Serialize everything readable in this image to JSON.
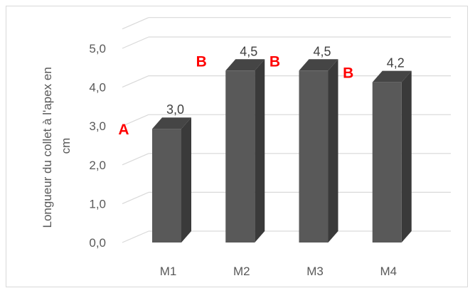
{
  "chart_data": {
    "type": "bar",
    "categories": [
      "M1",
      "M2",
      "M3",
      "M4"
    ],
    "values": [
      3.0,
      4.5,
      4.5,
      4.2
    ],
    "value_labels": [
      "3,0",
      "4,5",
      "4,5",
      "4,2"
    ],
    "significance_letters": [
      "A",
      "B",
      "B",
      "B"
    ],
    "ylabel_lines": [
      "Longueur du collet à l'apex en",
      "cm"
    ],
    "yticks": [
      "0,0",
      "1,0",
      "2,0",
      "3,0",
      "4,0",
      "5,0"
    ],
    "ylim": [
      0,
      5.5
    ],
    "grid": true,
    "legend": "none",
    "colors": {
      "bar_front": "#595959",
      "bar_side": "#3a3a3a",
      "bar_top": "#454545",
      "grid": "#d9d9d9",
      "letters": "#ff0000"
    }
  }
}
